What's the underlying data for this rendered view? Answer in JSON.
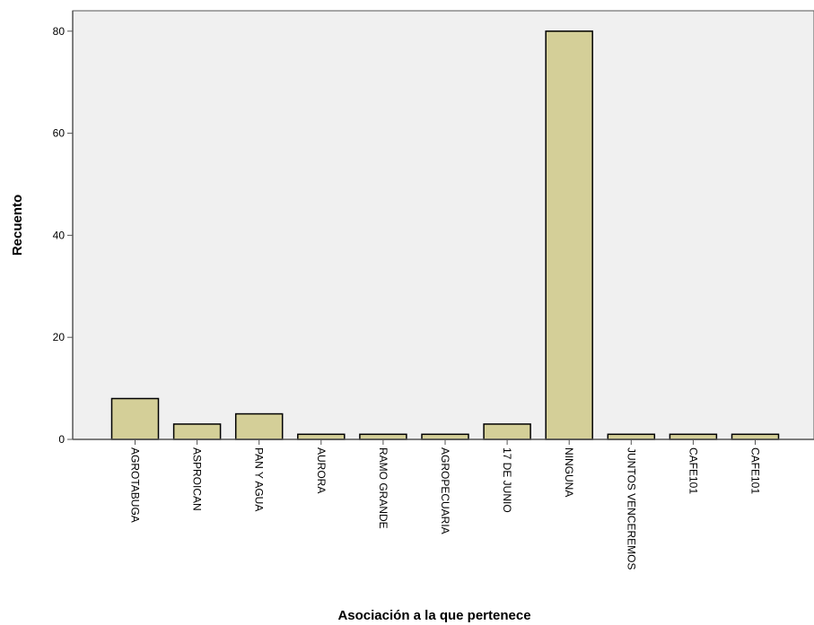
{
  "chart_data": {
    "type": "bar",
    "title": "",
    "xlabel": "Asociación a la que pertenece",
    "ylabel": "Recuento",
    "categories": [
      "AGROTABUGA",
      "ASPROICAN",
      "PAN Y AGUA",
      "AURORA",
      "RAMO GRANDE",
      "AGROPECUARIA",
      "17 DE JUNIO",
      "NINGUNA",
      "JUNTOS VENCEREMOS",
      "CAFE101",
      "CAFE101"
    ],
    "values": [
      8,
      3,
      5,
      1,
      1,
      1,
      3,
      80,
      1,
      1,
      1
    ],
    "ylim": [
      0,
      84
    ],
    "yticks": [
      0,
      20,
      40,
      60,
      80
    ],
    "grid": false,
    "colors": {
      "bar_fill": "#d4cf98",
      "bar_stroke": "#000000",
      "plot_background": "#f0f0f0",
      "axis": "#555555"
    }
  }
}
